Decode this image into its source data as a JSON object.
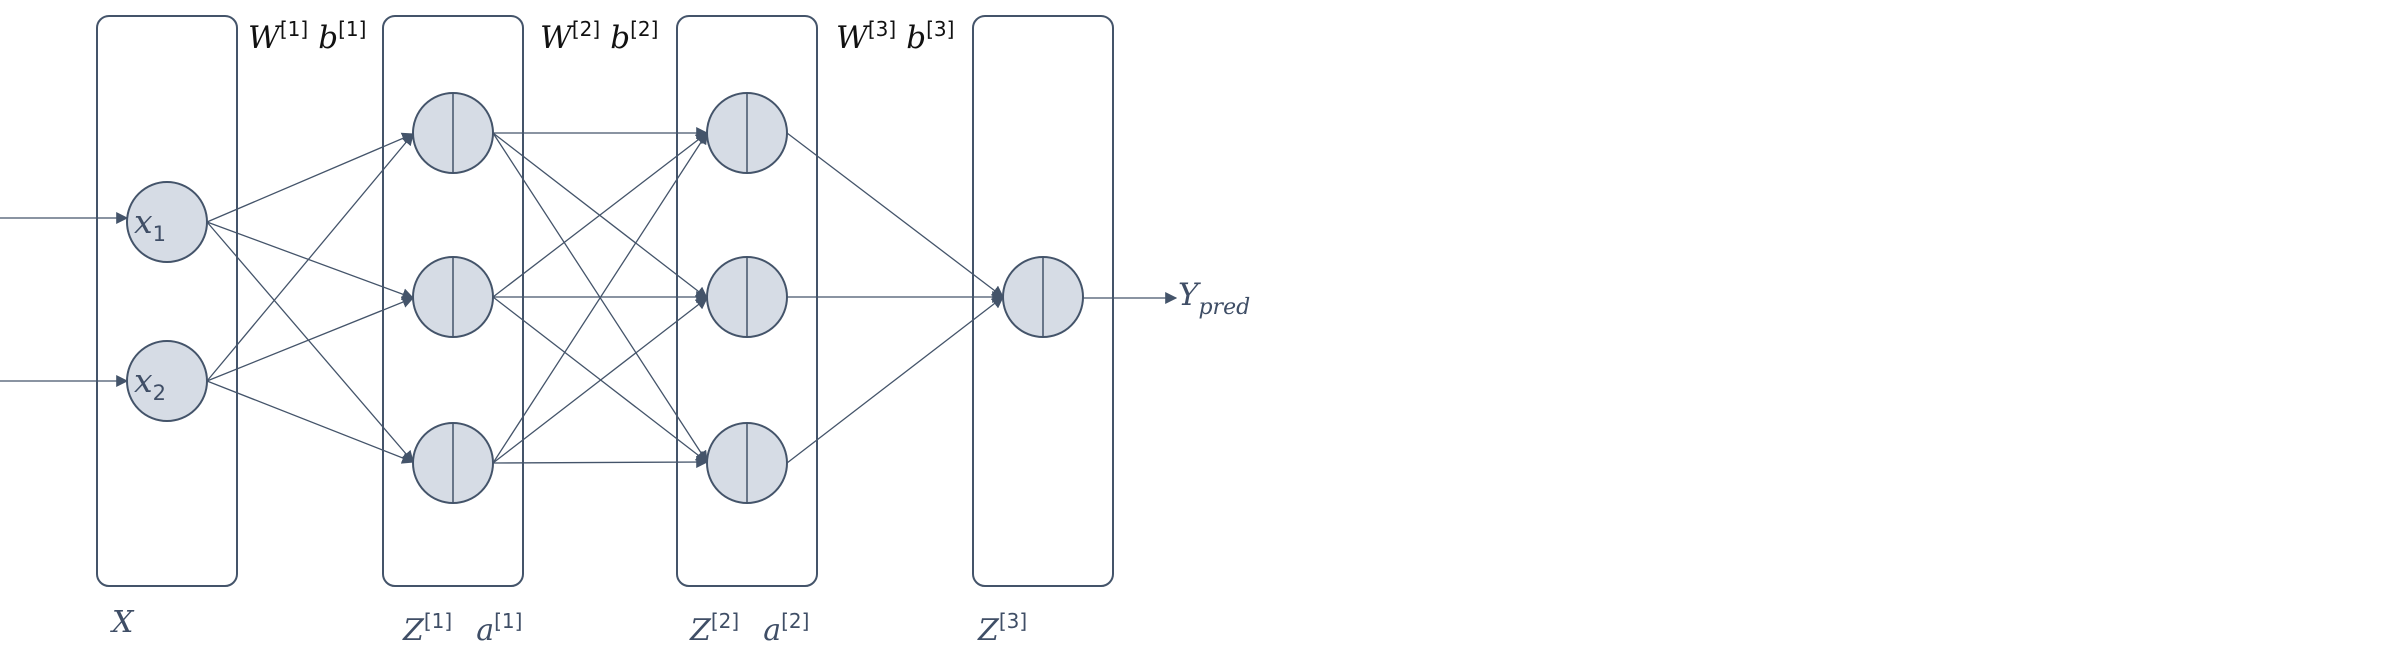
{
  "colors": {
    "stroke": "#44546a",
    "node_fill": "#d6dce5",
    "text_dark": "#111111",
    "text_blue": "#3f4e66"
  },
  "param_labels": [
    {
      "w_base": "W",
      "w_sup": "[1]",
      "b_base": "b",
      "b_sup": "[1]"
    },
    {
      "w_base": "W",
      "w_sup": "[2]",
      "b_base": "b",
      "b_sup": "[2]"
    },
    {
      "w_base": "W",
      "w_sup": "[3]",
      "b_base": "b",
      "b_sup": "[3]"
    }
  ],
  "layer_labels": {
    "input": "X",
    "hidden1": {
      "z_base": "Z",
      "z_sup": "[1]",
      "a_base": "a",
      "a_sup": "[1]"
    },
    "hidden2": {
      "z_base": "Z",
      "z_sup": "[2]",
      "a_base": "a",
      "a_sup": "[2]"
    },
    "output": {
      "z_base": "Z",
      "z_sup": "[3]"
    }
  },
  "inputs": [
    {
      "base": "x",
      "sub": "1"
    },
    {
      "base": "x",
      "sub": "2"
    }
  ],
  "output_label": {
    "base": "Y",
    "sub": "pred"
  },
  "layers": [
    {
      "name": "input",
      "neurons": 2
    },
    {
      "name": "hidden1",
      "neurons": 3
    },
    {
      "name": "hidden2",
      "neurons": 3
    },
    {
      "name": "output",
      "neurons": 1
    }
  ]
}
